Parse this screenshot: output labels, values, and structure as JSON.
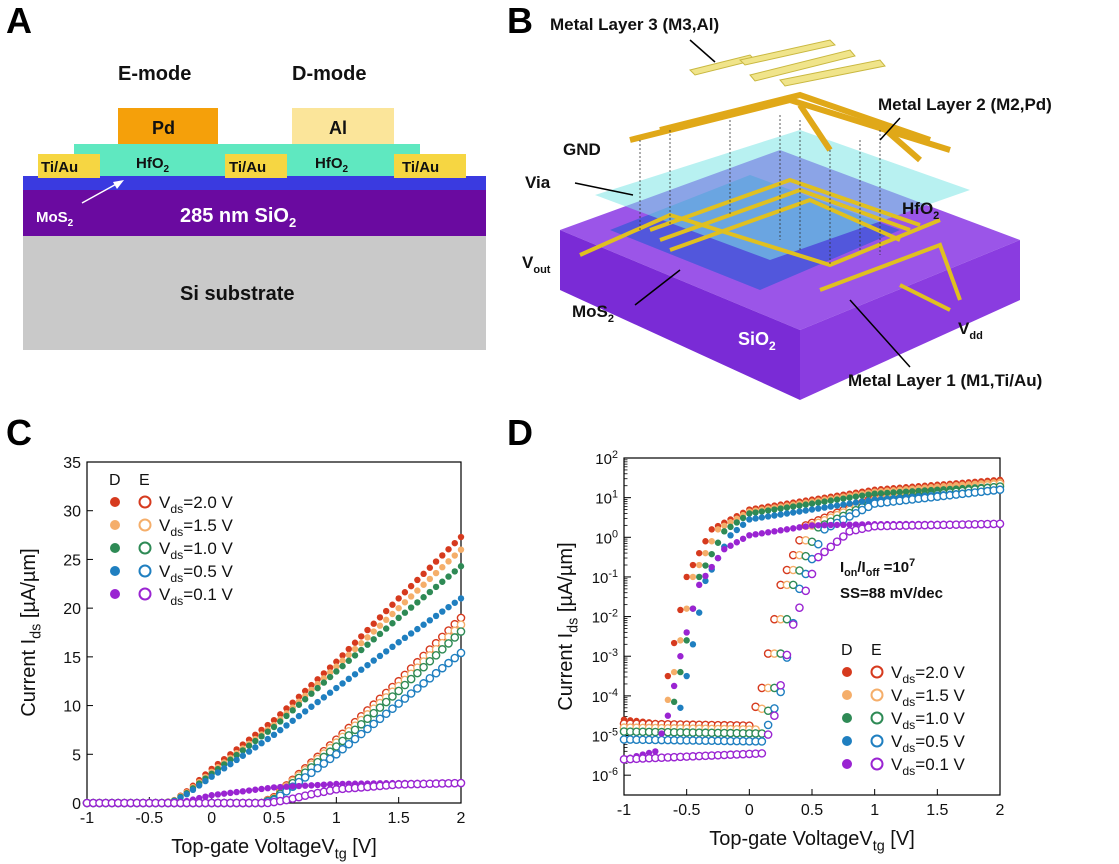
{
  "panels": {
    "a": "A",
    "b": "B",
    "c": "C",
    "d": "D"
  },
  "panel_a": {
    "e_mode": "E-mode",
    "d_mode": "D-mode",
    "pd": "Pd",
    "al": "Al",
    "tiau": "Ti/Au",
    "hfo2": "HfO",
    "hfo2_sub": "2",
    "mos2": "MoS",
    "mos2_sub": "2",
    "sio2": "285 nm SiO",
    "sio2_sub": "2",
    "si": "Si substrate",
    "colors": {
      "pd": "#f5a00a",
      "al": "#fbe59a",
      "tiau": "#f6d642",
      "hfo2": "#5fe8c0",
      "mos2": "#3a3ae0",
      "sio2": "#6a0aa0",
      "si": "#c9c9c9"
    }
  },
  "panel_b": {
    "m3": "Metal Layer 3 (M3,Al)",
    "m2": "Metal Layer 2 (M2,Pd)",
    "m1": "Metal Layer 1 (M1,Ti/Au)",
    "gnd": "GND",
    "via": "Via",
    "hfo2": "HfO",
    "hfo2_sub": "2",
    "vout": "V",
    "vout_sub": "out",
    "mos2": "MoS",
    "mos2_sub": "2",
    "sio2": "SiO",
    "sio2_sub": "2",
    "vdd": "V",
    "vdd_sub": "dd"
  },
  "chart_data": [
    {
      "type": "scatter",
      "panel": "C",
      "xlabel": "Top-gate VoltageV",
      "xlabel_sub": "tg",
      "xlabel_unit": " [V]",
      "ylabel": "Current I",
      "ylabel_sub": "ds",
      "ylabel_unit": " [µA/µm]",
      "xlim": [
        -1,
        2
      ],
      "ylim": [
        0,
        35
      ],
      "xticks": [
        "-1",
        "-0.5",
        "0",
        "0.5",
        "1",
        "1.5",
        "2"
      ],
      "yticks": [
        "0",
        "5",
        "10",
        "15",
        "20",
        "25",
        "30",
        "35"
      ],
      "legend_header": [
        "D",
        "E"
      ],
      "legend_placement": "top-left",
      "series": [
        {
          "label": "=2.0 V",
          "color": "#d63a1e",
          "d_points": [
            [
              -1,
              0
            ],
            [
              -0.4,
              0
            ],
            [
              -0.3,
              0.3
            ],
            [
              -0.2,
              1.2
            ],
            [
              0,
              3.5
            ],
            [
              0.5,
              8.5
            ],
            [
              1,
              14.5
            ],
            [
              1.5,
              21
            ],
            [
              2,
              27.3
            ]
          ],
          "e_points": [
            [
              -1,
              0
            ],
            [
              0.4,
              0
            ],
            [
              0.5,
              0.6
            ],
            [
              0.6,
              1.8
            ],
            [
              1,
              6.5
            ],
            [
              1.5,
              12.5
            ],
            [
              2,
              19
            ]
          ]
        },
        {
          "label": "=1.5 V",
          "color": "#f5ae6a",
          "d_points": [
            [
              -1,
              0
            ],
            [
              -0.4,
              0
            ],
            [
              -0.3,
              0.3
            ],
            [
              -0.2,
              1.1
            ],
            [
              0,
              3.2
            ],
            [
              0.5,
              8
            ],
            [
              1,
              14
            ],
            [
              1.5,
              20
            ],
            [
              2,
              26
            ]
          ],
          "e_points": [
            [
              -1,
              0
            ],
            [
              0.4,
              0
            ],
            [
              0.5,
              0.5
            ],
            [
              0.6,
              1.7
            ],
            [
              1,
              6.2
            ],
            [
              1.5,
              12
            ],
            [
              2,
              18.3
            ]
          ]
        },
        {
          "label": "=1.0 V",
          "color": "#2e8a55",
          "d_points": [
            [
              -1,
              0
            ],
            [
              -0.4,
              0
            ],
            [
              -0.3,
              0.25
            ],
            [
              -0.2,
              1
            ],
            [
              0,
              3
            ],
            [
              0.5,
              7.8
            ],
            [
              1,
              13.5
            ],
            [
              1.5,
              19
            ],
            [
              2,
              24.3
            ]
          ],
          "e_points": [
            [
              -1,
              0
            ],
            [
              0.4,
              0
            ],
            [
              0.5,
              0.4
            ],
            [
              0.6,
              1.5
            ],
            [
              1,
              5.8
            ],
            [
              1.5,
              11.5
            ],
            [
              2,
              17.6
            ]
          ]
        },
        {
          "label": "=0.5 V",
          "color": "#1f7fc0",
          "d_points": [
            [
              -1,
              0
            ],
            [
              -0.4,
              0
            ],
            [
              -0.3,
              0.2
            ],
            [
              -0.2,
              0.9
            ],
            [
              0,
              2.7
            ],
            [
              0.5,
              7
            ],
            [
              1,
              11.8
            ],
            [
              1.5,
              16.5
            ],
            [
              2,
              21
            ]
          ],
          "e_points": [
            [
              -1,
              0
            ],
            [
              0.4,
              0
            ],
            [
              0.5,
              0.3
            ],
            [
              0.6,
              1.2
            ],
            [
              1,
              5
            ],
            [
              1.5,
              10.2
            ],
            [
              2,
              15.4
            ]
          ]
        },
        {
          "label": "=0.1 V",
          "color": "#9a24d2",
          "d_points": [
            [
              -1,
              0
            ],
            [
              -0.3,
              0
            ],
            [
              -0.2,
              0.2
            ],
            [
              0,
              0.8
            ],
            [
              0.5,
              1.6
            ],
            [
              1,
              1.95
            ],
            [
              1.5,
              2.05
            ],
            [
              2,
              2.1
            ]
          ],
          "e_points": [
            [
              -1,
              0
            ],
            [
              0.45,
              0
            ],
            [
              0.6,
              0.3
            ],
            [
              0.8,
              0.9
            ],
            [
              1,
              1.4
            ],
            [
              1.5,
              1.9
            ],
            [
              2,
              2.05
            ]
          ]
        }
      ]
    },
    {
      "type": "scatter",
      "panel": "D",
      "yscale": "log",
      "xlabel": "Top-gate VoltageV",
      "xlabel_sub": "tg",
      "xlabel_unit": " [V]",
      "ylabel": "Current I",
      "ylabel_sub": "ds",
      "ylabel_unit": " [µA/µm]",
      "xlim": [
        -1,
        2
      ],
      "ylim_exp": [
        -6.5,
        2
      ],
      "xticks": [
        "-1",
        "-0.5",
        "0",
        "0.5",
        "1",
        "1.5",
        "2"
      ],
      "yticks_exp": [
        "2",
        "1",
        "0",
        "-1",
        "-2",
        "-3",
        "-4",
        "-5",
        "-6"
      ],
      "ytick_base": "10",
      "annotation_1": "I",
      "annotation_1_sub1": "on",
      "annotation_1_mid": "/I",
      "annotation_1_sub2": "off",
      "annotation_1_end": " =10",
      "annotation_1_sup": "7",
      "annotation_2": "SS=88 mV/dec",
      "legend_header": [
        "D",
        "E"
      ],
      "legend_placement": "bottom-right",
      "series": [
        {
          "label": "=2.0 V",
          "color": "#d63a1e",
          "d_points": [
            [
              -1,
              -4.6
            ],
            [
              -0.7,
              -4.7
            ],
            [
              -0.65,
              -3.5
            ],
            [
              -0.5,
              -1
            ],
            [
              -0.3,
              0.2
            ],
            [
              0,
              0.7
            ],
            [
              1,
              1.2
            ],
            [
              2,
              1.45
            ]
          ],
          "e_points": [
            [
              -1,
              -4.7
            ],
            [
              0,
              -4.75
            ],
            [
              0.1,
              -3.8
            ],
            [
              0.25,
              -1.2
            ],
            [
              0.45,
              0.3
            ],
            [
              1,
              1.0
            ],
            [
              2,
              1.4
            ]
          ]
        },
        {
          "label": "=1.5 V",
          "color": "#f5ae6a",
          "d_points": [
            [
              -1,
              -4.8
            ],
            [
              -0.7,
              -4.8
            ],
            [
              -0.6,
              -3.4
            ],
            [
              -0.45,
              -1
            ],
            [
              -0.25,
              0.2
            ],
            [
              0,
              0.65
            ],
            [
              1,
              1.15
            ],
            [
              2,
              1.4
            ]
          ],
          "e_points": [
            [
              -1,
              -4.8
            ],
            [
              0.05,
              -4.85
            ],
            [
              0.15,
              -3.8
            ],
            [
              0.3,
              -1.2
            ],
            [
              0.5,
              0.3
            ],
            [
              1,
              0.95
            ],
            [
              2,
              1.35
            ]
          ]
        },
        {
          "label": "=1.0 V",
          "color": "#2e8a55",
          "d_points": [
            [
              -1,
              -4.9
            ],
            [
              -0.65,
              -4.9
            ],
            [
              -0.55,
              -3.4
            ],
            [
              -0.4,
              -1
            ],
            [
              -0.2,
              0.15
            ],
            [
              0,
              0.6
            ],
            [
              1,
              1.1
            ],
            [
              2,
              1.3
            ]
          ],
          "e_points": [
            [
              -1,
              -4.9
            ],
            [
              0.1,
              -4.95
            ],
            [
              0.2,
              -3.8
            ],
            [
              0.35,
              -1.2
            ],
            [
              0.55,
              0.25
            ],
            [
              1,
              0.9
            ],
            [
              2,
              1.28
            ]
          ]
        },
        {
          "label": "=0.5 V",
          "color": "#1f7fc0",
          "d_points": [
            [
              -1,
              -5.1
            ],
            [
              -0.6,
              -5.1
            ],
            [
              -0.5,
              -3.5
            ],
            [
              -0.35,
              -1.1
            ],
            [
              -0.15,
              0.05
            ],
            [
              0,
              0.45
            ],
            [
              1,
              0.95
            ],
            [
              2,
              1.2
            ]
          ],
          "e_points": [
            [
              -1,
              -5.1
            ],
            [
              0.1,
              -5.15
            ],
            [
              0.25,
              -3.9
            ],
            [
              0.4,
              -1.3
            ],
            [
              0.6,
              0.2
            ],
            [
              1,
              0.85
            ],
            [
              2,
              1.2
            ]
          ]
        },
        {
          "label": "=0.1 V",
          "color": "#9a24d2",
          "d_points": [
            [
              -1,
              -5.6
            ],
            [
              -0.75,
              -5.4
            ],
            [
              -0.65,
              -4.5
            ],
            [
              -0.55,
              -3
            ],
            [
              -0.4,
              -1.2
            ],
            [
              -0.2,
              -0.3
            ],
            [
              0,
              0.05
            ],
            [
              0.5,
              0.3
            ],
            [
              1,
              0.33
            ],
            [
              2,
              0.35
            ]
          ],
          "e_points": [
            [
              -1,
              -5.6
            ],
            [
              0.1,
              -5.45
            ],
            [
              0.2,
              -4.5
            ],
            [
              0.35,
              -2.2
            ],
            [
              0.55,
              -0.5
            ],
            [
              0.8,
              0.15
            ],
            [
              1,
              0.28
            ],
            [
              2,
              0.34
            ]
          ]
        }
      ]
    }
  ]
}
